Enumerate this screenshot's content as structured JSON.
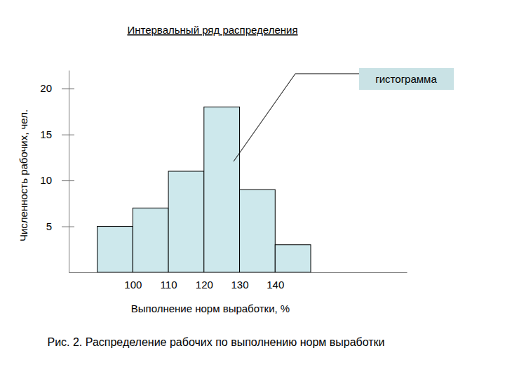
{
  "chart_data": {
    "type": "histogram",
    "title": "Интервальный ряд распределения",
    "x_label": "Выполнение норм выработки, %",
    "y_label": "Численность рабочих, чел.",
    "bins": [
      90,
      100,
      110,
      120,
      130,
      140,
      150
    ],
    "values": [
      5,
      7,
      11,
      18,
      9,
      3
    ],
    "color": "#cde8ec",
    "xlim": [
      82,
      177
    ],
    "ylim": [
      0,
      22
    ],
    "xticks": [
      100,
      110,
      120,
      130,
      140
    ],
    "yticks": [
      5,
      10,
      15,
      20
    ],
    "annotation": "гистограмма",
    "caption": "Рис. 2. Распределение рабочих по выполнению норм выработки"
  }
}
